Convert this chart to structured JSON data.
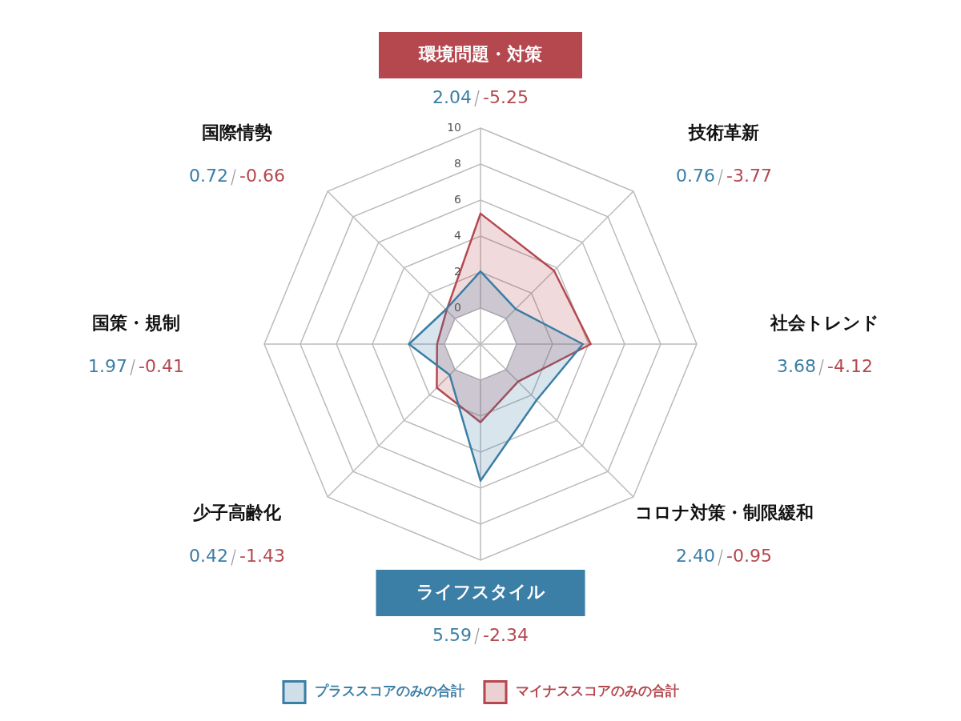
{
  "chart_data": {
    "type": "radar",
    "categories": [
      "環境問題・対策",
      "技術革新",
      "社会トレンド",
      "コロナ対策・制限緩和",
      "ライフスタイル",
      "少子高齢化",
      "国策・規制",
      "国際情勢"
    ],
    "series": [
      {
        "name": "プラススコアのみの合計",
        "color": "#3b7ea6",
        "values": [
          2.04,
          0.76,
          3.68,
          2.4,
          5.59,
          0.42,
          1.97,
          0.72
        ]
      },
      {
        "name": "マイナススコアのみの合計",
        "color": "#b5484f",
        "values": [
          5.25,
          3.77,
          4.12,
          0.95,
          2.34,
          1.43,
          0.41,
          0.66
        ]
      }
    ],
    "annotations": [
      {
        "text": "2.04",
        "x": "環境問題・対策"
      },
      {
        "text": "-5.25",
        "x": "環境問題・対策"
      },
      {
        "text": "0.76",
        "x": "技術革新"
      },
      {
        "text": "-3.77",
        "x": "技術革新"
      },
      {
        "text": "3.68",
        "x": "社会トレンド"
      },
      {
        "text": "-4.12",
        "x": "社会トレンド"
      },
      {
        "text": "2.40",
        "x": "コロナ対策・制限緩和"
      },
      {
        "text": "-0.95",
        "x": "コロナ対策・制限緩和"
      },
      {
        "text": "5.59",
        "x": "ライフスタイル"
      },
      {
        "text": "-2.34",
        "x": "ライフスタイル"
      },
      {
        "text": "0.42",
        "x": "少子高齢化"
      },
      {
        "text": "-1.43",
        "x": "少子高齢化"
      },
      {
        "text": "1.97",
        "x": "国策・規制"
      },
      {
        "text": "-0.41",
        "x": "国策・規制"
      },
      {
        "text": "0.72",
        "x": "国際情勢"
      },
      {
        "text": "-0.66",
        "x": "国際情勢"
      }
    ],
    "ylim": [
      -2,
      10
    ],
    "yticks": [
      0,
      2,
      4,
      6,
      8,
      10
    ],
    "grid": true,
    "legend": "bottom",
    "marker": "none"
  }
}
